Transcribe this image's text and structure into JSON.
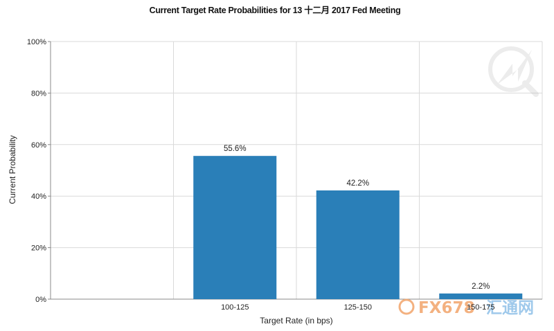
{
  "chart_data": {
    "type": "bar",
    "title": "Current Target Rate Probabilities for 13 十二月 2017 Fed Meeting",
    "xlabel": "Target Rate (in bps)",
    "ylabel": "Current Probability",
    "categories": [
      "",
      "100-125",
      "125-150",
      "150-175"
    ],
    "values": [
      null,
      55.6,
      42.2,
      2.2
    ],
    "data_labels": [
      "",
      "55.6%",
      "42.2%",
      "2.2%"
    ],
    "y_ticks": [
      "0%",
      "20%",
      "40%",
      "60%",
      "80%",
      "100%"
    ],
    "ylim": [
      0,
      100
    ],
    "grid": true,
    "legend": "none",
    "colors": {
      "bar": "#2a7fb8",
      "grid": "#d9d9d9",
      "axis": "#888888"
    }
  },
  "watermark": {
    "brand": "FX678",
    "brand_cn": "汇通网",
    "brand_color": "#f2a46a",
    "icon": "magnifier-arrow-icon"
  }
}
